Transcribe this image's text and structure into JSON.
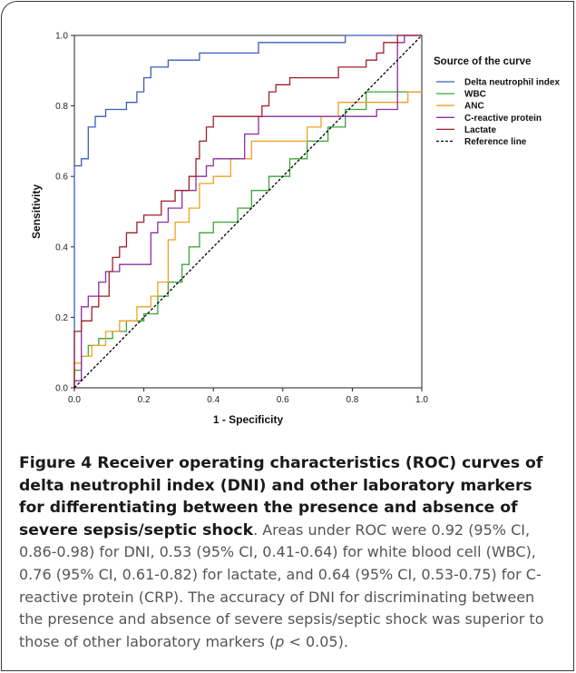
{
  "chart_data": {
    "type": "line",
    "xlabel": "1 - Specificity",
    "ylabel": "Sensitivity",
    "xlim": [
      0,
      1
    ],
    "ylim": [
      0,
      1
    ],
    "x_ticks": [
      "0.0",
      "0.2",
      "0.4",
      "0.6",
      "0.8",
      "1.0"
    ],
    "y_ticks": [
      "0.0",
      "0.2",
      "0.4",
      "0.6",
      "0.8",
      "1.0"
    ],
    "grid": false,
    "legend_title": "Source of the curve",
    "legend_position": "right",
    "series": [
      {
        "name": "Delta neutrophil index",
        "color": "#3a5cc4",
        "dash": "",
        "points": [
          [
            0,
            0
          ],
          [
            0,
            0.63
          ],
          [
            0.02,
            0.63
          ],
          [
            0.02,
            0.65
          ],
          [
            0.04,
            0.65
          ],
          [
            0.04,
            0.74
          ],
          [
            0.06,
            0.74
          ],
          [
            0.06,
            0.77
          ],
          [
            0.09,
            0.77
          ],
          [
            0.09,
            0.79
          ],
          [
            0.15,
            0.79
          ],
          [
            0.15,
            0.81
          ],
          [
            0.18,
            0.81
          ],
          [
            0.18,
            0.84
          ],
          [
            0.2,
            0.84
          ],
          [
            0.2,
            0.88
          ],
          [
            0.22,
            0.88
          ],
          [
            0.22,
            0.91
          ],
          [
            0.27,
            0.91
          ],
          [
            0.27,
            0.93
          ],
          [
            0.36,
            0.93
          ],
          [
            0.36,
            0.95
          ],
          [
            0.53,
            0.95
          ],
          [
            0.53,
            0.98
          ],
          [
            0.78,
            0.98
          ],
          [
            0.78,
            1.0
          ],
          [
            1.0,
            1.0
          ]
        ]
      },
      {
        "name": "WBC",
        "color": "#3aa63a",
        "dash": "",
        "points": [
          [
            0,
            0
          ],
          [
            0,
            0.05
          ],
          [
            0.02,
            0.05
          ],
          [
            0.02,
            0.09
          ],
          [
            0.04,
            0.09
          ],
          [
            0.04,
            0.12
          ],
          [
            0.07,
            0.12
          ],
          [
            0.07,
            0.14
          ],
          [
            0.11,
            0.14
          ],
          [
            0.11,
            0.16
          ],
          [
            0.15,
            0.16
          ],
          [
            0.15,
            0.19
          ],
          [
            0.2,
            0.19
          ],
          [
            0.2,
            0.21
          ],
          [
            0.24,
            0.21
          ],
          [
            0.24,
            0.26
          ],
          [
            0.27,
            0.26
          ],
          [
            0.27,
            0.3
          ],
          [
            0.31,
            0.3
          ],
          [
            0.31,
            0.35
          ],
          [
            0.33,
            0.35
          ],
          [
            0.33,
            0.4
          ],
          [
            0.36,
            0.4
          ],
          [
            0.36,
            0.44
          ],
          [
            0.4,
            0.44
          ],
          [
            0.4,
            0.47
          ],
          [
            0.47,
            0.47
          ],
          [
            0.47,
            0.51
          ],
          [
            0.51,
            0.51
          ],
          [
            0.51,
            0.56
          ],
          [
            0.56,
            0.56
          ],
          [
            0.56,
            0.6
          ],
          [
            0.62,
            0.6
          ],
          [
            0.62,
            0.65
          ],
          [
            0.67,
            0.65
          ],
          [
            0.67,
            0.7
          ],
          [
            0.73,
            0.7
          ],
          [
            0.73,
            0.74
          ],
          [
            0.78,
            0.74
          ],
          [
            0.78,
            0.79
          ],
          [
            0.84,
            0.79
          ],
          [
            0.84,
            0.84
          ],
          [
            1.0,
            0.84
          ]
        ]
      },
      {
        "name": "ANC",
        "color": "#f0a020",
        "dash": "",
        "points": [
          [
            0,
            0
          ],
          [
            0,
            0.07
          ],
          [
            0.02,
            0.07
          ],
          [
            0.02,
            0.09
          ],
          [
            0.05,
            0.09
          ],
          [
            0.05,
            0.12
          ],
          [
            0.09,
            0.12
          ],
          [
            0.09,
            0.16
          ],
          [
            0.13,
            0.16
          ],
          [
            0.13,
            0.19
          ],
          [
            0.18,
            0.19
          ],
          [
            0.18,
            0.23
          ],
          [
            0.22,
            0.23
          ],
          [
            0.22,
            0.26
          ],
          [
            0.24,
            0.26
          ],
          [
            0.24,
            0.3
          ],
          [
            0.27,
            0.3
          ],
          [
            0.27,
            0.42
          ],
          [
            0.29,
            0.42
          ],
          [
            0.29,
            0.47
          ],
          [
            0.33,
            0.47
          ],
          [
            0.33,
            0.51
          ],
          [
            0.36,
            0.51
          ],
          [
            0.36,
            0.58
          ],
          [
            0.4,
            0.58
          ],
          [
            0.4,
            0.6
          ],
          [
            0.45,
            0.6
          ],
          [
            0.45,
            0.65
          ],
          [
            0.51,
            0.65
          ],
          [
            0.51,
            0.7
          ],
          [
            0.67,
            0.7
          ],
          [
            0.67,
            0.74
          ],
          [
            0.71,
            0.74
          ],
          [
            0.71,
            0.77
          ],
          [
            0.76,
            0.77
          ],
          [
            0.76,
            0.81
          ],
          [
            0.96,
            0.81
          ],
          [
            0.96,
            0.84
          ],
          [
            1.0,
            0.84
          ]
        ]
      },
      {
        "name": "C-reactive protein",
        "color": "#8a2fa0",
        "dash": "",
        "points": [
          [
            0,
            0
          ],
          [
            0,
            0.02
          ],
          [
            0.02,
            0.02
          ],
          [
            0.02,
            0.23
          ],
          [
            0.04,
            0.23
          ],
          [
            0.04,
            0.26
          ],
          [
            0.07,
            0.26
          ],
          [
            0.07,
            0.3
          ],
          [
            0.09,
            0.3
          ],
          [
            0.09,
            0.33
          ],
          [
            0.13,
            0.33
          ],
          [
            0.13,
            0.35
          ],
          [
            0.22,
            0.35
          ],
          [
            0.22,
            0.44
          ],
          [
            0.24,
            0.44
          ],
          [
            0.24,
            0.47
          ],
          [
            0.27,
            0.47
          ],
          [
            0.27,
            0.51
          ],
          [
            0.31,
            0.51
          ],
          [
            0.31,
            0.56
          ],
          [
            0.35,
            0.56
          ],
          [
            0.35,
            0.6
          ],
          [
            0.38,
            0.6
          ],
          [
            0.38,
            0.63
          ],
          [
            0.4,
            0.63
          ],
          [
            0.4,
            0.65
          ],
          [
            0.49,
            0.65
          ],
          [
            0.49,
            0.72
          ],
          [
            0.53,
            0.72
          ],
          [
            0.53,
            0.77
          ],
          [
            0.87,
            0.77
          ],
          [
            0.87,
            0.79
          ],
          [
            0.93,
            0.79
          ],
          [
            0.93,
            0.98
          ],
          [
            0.95,
            0.98
          ],
          [
            0.95,
            1.0
          ],
          [
            1.0,
            1.0
          ]
        ]
      },
      {
        "name": "Lactate",
        "color": "#a01f28",
        "dash": "",
        "points": [
          [
            0,
            0
          ],
          [
            0,
            0.16
          ],
          [
            0.02,
            0.16
          ],
          [
            0.02,
            0.19
          ],
          [
            0.05,
            0.19
          ],
          [
            0.05,
            0.23
          ],
          [
            0.07,
            0.23
          ],
          [
            0.07,
            0.26
          ],
          [
            0.1,
            0.26
          ],
          [
            0.1,
            0.33
          ],
          [
            0.11,
            0.33
          ],
          [
            0.11,
            0.37
          ],
          [
            0.13,
            0.37
          ],
          [
            0.13,
            0.4
          ],
          [
            0.15,
            0.4
          ],
          [
            0.15,
            0.44
          ],
          [
            0.18,
            0.44
          ],
          [
            0.18,
            0.47
          ],
          [
            0.2,
            0.47
          ],
          [
            0.2,
            0.49
          ],
          [
            0.25,
            0.49
          ],
          [
            0.25,
            0.53
          ],
          [
            0.29,
            0.53
          ],
          [
            0.29,
            0.56
          ],
          [
            0.33,
            0.56
          ],
          [
            0.33,
            0.6
          ],
          [
            0.35,
            0.6
          ],
          [
            0.35,
            0.65
          ],
          [
            0.36,
            0.65
          ],
          [
            0.36,
            0.7
          ],
          [
            0.38,
            0.7
          ],
          [
            0.38,
            0.74
          ],
          [
            0.4,
            0.74
          ],
          [
            0.4,
            0.77
          ],
          [
            0.54,
            0.77
          ],
          [
            0.54,
            0.8
          ],
          [
            0.56,
            0.8
          ],
          [
            0.56,
            0.84
          ],
          [
            0.58,
            0.84
          ],
          [
            0.58,
            0.86
          ],
          [
            0.62,
            0.86
          ],
          [
            0.62,
            0.88
          ],
          [
            0.76,
            0.88
          ],
          [
            0.76,
            0.91
          ],
          [
            0.84,
            0.91
          ],
          [
            0.84,
            0.93
          ],
          [
            0.87,
            0.93
          ],
          [
            0.87,
            0.95
          ],
          [
            0.89,
            0.95
          ],
          [
            0.89,
            0.98
          ],
          [
            0.93,
            0.98
          ],
          [
            0.93,
            1.0
          ],
          [
            1.0,
            1.0
          ]
        ]
      },
      {
        "name": "Reference line",
        "color": "#000000",
        "dash": "3,2",
        "points": [
          [
            0,
            0
          ],
          [
            1,
            1
          ]
        ]
      }
    ]
  },
  "caption": {
    "bold": "Figure 4 Receiver operating characteristics (ROC) curves of delta neutrophil index (DNI) and other laboratory markers for differentiating between the presence and absence of severe sepsis/septic shock",
    "body_parts": [
      ". Areas under ROC were 0.92 (95% CI, 0.86-0.98) for DNI, 0.53 (95% CI, 0.41-0.64) for white blood cell (WBC), 0.76 (95% CI, 0.61-0.82) for lactate, and 0.64 (95% CI, 0.53-0.75) for C-reactive protein (CRP). The accuracy of DNI for discriminating between the presence and absence of severe sepsis/septic shock was superior to those of other laboratory markers (",
      "p",
      " < 0.05)."
    ]
  }
}
